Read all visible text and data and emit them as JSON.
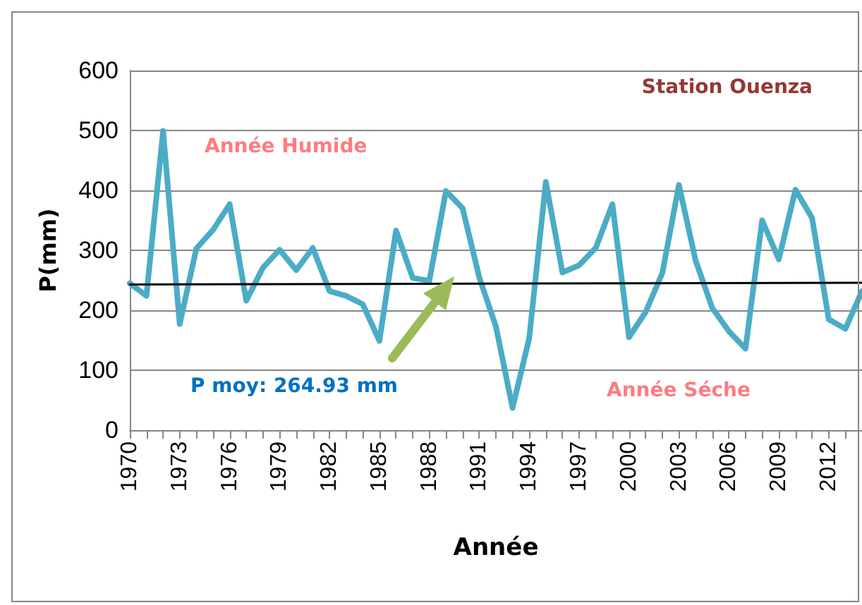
{
  "chart_data": {
    "type": "line",
    "xlabel": "Année",
    "ylabel": "P(mm)",
    "annotations": [
      "Station Ouenza",
      "Année Humide",
      "P moy: 264.93 mm",
      "Année Séche"
    ],
    "x": [
      1970,
      1971,
      1972,
      1973,
      1974,
      1975,
      1976,
      1977,
      1978,
      1979,
      1980,
      1981,
      1982,
      1983,
      1984,
      1985,
      1986,
      1987,
      1988,
      1989,
      1990,
      1991,
      1992,
      1993,
      1994,
      1995,
      1996,
      1997,
      1998,
      1999,
      2000,
      2001,
      2002,
      2003,
      2004,
      2005,
      2006,
      2007,
      2008,
      2009,
      2010,
      2011,
      2012,
      2013,
      2014
    ],
    "series": [
      {
        "color": "#4bacc6",
        "values": [
          245,
          224,
          499,
          177,
          303,
          334,
          377,
          216,
          271,
          301,
          267,
          304,
          232,
          224,
          210,
          149,
          333,
          254,
          249,
          399,
          370,
          255,
          173,
          37,
          153,
          414,
          263,
          275,
          304,
          377,
          155,
          197,
          262,
          409,
          283,
          204,
          165,
          136,
          350,
          285,
          401,
          354,
          185,
          169,
          232
        ]
      },
      {
        "type": "line",
        "color": "#000000",
        "x": [
          1970,
          2014
        ],
        "values": [
          243,
          246
        ]
      }
    ],
    "xlim": [
      1970,
      2014
    ],
    "xticks": [
      1970,
      {
        "value": 1971,
        "label": null
      },
      {
        "value": 1972,
        "label": null
      },
      1973,
      {
        "value": 1974,
        "label": null
      },
      {
        "value": 1975,
        "label": null
      },
      1976,
      {
        "value": 1977,
        "label": null
      },
      {
        "value": 1978,
        "label": null
      },
      1979,
      {
        "value": 1980,
        "label": null
      },
      {
        "value": 1981,
        "label": null
      },
      1982,
      {
        "value": 1983,
        "label": null
      },
      {
        "value": 1984,
        "label": null
      },
      1985,
      {
        "value": 1986,
        "label": null
      },
      {
        "value": 1987,
        "label": null
      },
      1988,
      {
        "value": 1989,
        "label": null
      },
      {
        "value": 1990,
        "label": null
      },
      1991,
      {
        "value": 1992,
        "label": null
      },
      {
        "value": 1993,
        "label": null
      },
      1994,
      {
        "value": 1995,
        "label": null
      },
      {
        "value": 1996,
        "label": null
      },
      1997,
      {
        "value": 1998,
        "label": null
      },
      {
        "value": 1999,
        "label": null
      },
      2000,
      {
        "value": 2001,
        "label": null
      },
      {
        "value": 2002,
        "label": null
      },
      2003,
      {
        "value": 2004,
        "label": null
      },
      {
        "value": 2005,
        "label": null
      },
      2006,
      {
        "value": 2007,
        "label": null
      },
      {
        "value": 2008,
        "label": null
      },
      2009,
      {
        "value": 2010,
        "label": null
      },
      {
        "value": 2011,
        "label": null
      },
      2012,
      {
        "value": 2013,
        "label": null
      },
      {
        "value": 2014,
        "label": null
      }
    ],
    "ylim": [
      0,
      600
    ],
    "yticks": [
      0,
      100,
      200,
      300,
      400,
      500,
      600
    ],
    "grid": "y",
    "marker": "none",
    "line_style": "solid"
  }
}
